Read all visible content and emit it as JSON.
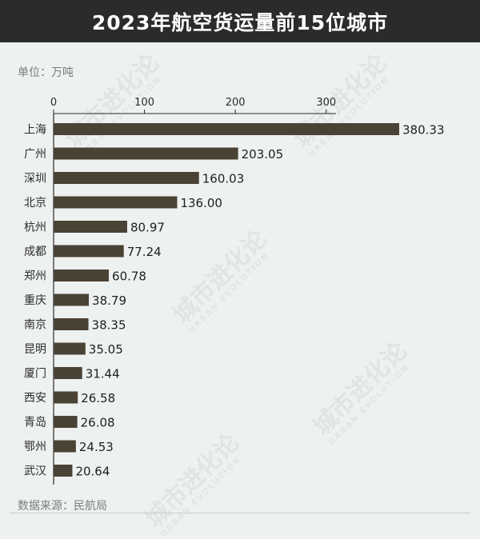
{
  "title": "2023年航空货运量前15位城市",
  "unit_label": "单位：万吨",
  "source_label": "数据来源：民航局",
  "watermark": {
    "main": "城市进化论",
    "sub": "URBAN EVOLUTION"
  },
  "colors": {
    "bar": "#4b4236",
    "header_bg": "#2b2b2b",
    "background": "#edf1ef"
  },
  "chart_data": {
    "type": "bar",
    "orientation": "horizontal",
    "categories": [
      "上海",
      "广州",
      "深圳",
      "北京",
      "杭州",
      "成都",
      "郑州",
      "重庆",
      "南京",
      "昆明",
      "厦门",
      "西安",
      "青岛",
      "鄂州",
      "武汉"
    ],
    "values": [
      380.33,
      203.05,
      160.03,
      136.0,
      80.97,
      77.24,
      60.78,
      38.79,
      38.35,
      35.05,
      31.44,
      26.58,
      26.08,
      24.53,
      20.64
    ],
    "value_labels": [
      "380.33",
      "203.05",
      "160.03",
      "136.00",
      "80.97",
      "77.24",
      "60.78",
      "38.79",
      "38.35",
      "35.05",
      "31.44",
      "26.58",
      "26.08",
      "24.53",
      "20.64"
    ],
    "ticks": [
      "0",
      "100",
      "200",
      "300"
    ],
    "tick_values": [
      0,
      100,
      200,
      300
    ],
    "xlim": [
      0,
      380.33
    ],
    "axis_position": "top",
    "grid": false,
    "legend": "none"
  }
}
